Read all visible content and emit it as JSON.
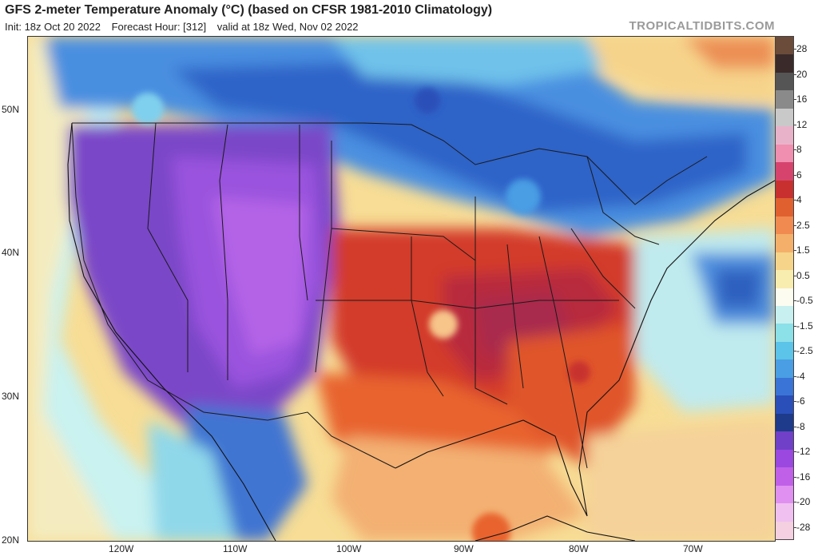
{
  "header": {
    "title": "GFS 2-meter Temperature Anomaly (°C) (based on CFSR 1981-2010 Climatology)",
    "init": "Init: 18z Oct 20 2022",
    "forecast_hour": "Forecast Hour: [312]",
    "valid": "valid at 18z Wed, Nov 02 2022",
    "brand": "TROPICALTIDBITS.COM"
  },
  "axes": {
    "lat_labels": [
      "50N",
      "40N",
      "30N",
      "20N"
    ],
    "lon_labels": [
      "120W",
      "110W",
      "100W",
      "90W",
      "80W",
      "70W"
    ]
  },
  "colorbar": {
    "labels": [
      "28",
      "20",
      "16",
      "12",
      "8",
      "6",
      "4",
      "2.5",
      "1.5",
      "0.5",
      "-0.5",
      "-1.5",
      "-2.5",
      "-4",
      "-6",
      "-8",
      "-12",
      "-16",
      "-20",
      "-28"
    ],
    "colors": [
      "#6b4b3a",
      "#3a2a2a",
      "#555555",
      "#8a8a8a",
      "#c9c9c9",
      "#e8b3c9",
      "#f08fb0",
      "#d6446e",
      "#c8302f",
      "#e06030",
      "#f08a50",
      "#f4b06a",
      "#f6d48a",
      "#f8ecaf",
      "#fcfcf0",
      "#c8f0f0",
      "#8ce0e8",
      "#5bc4e8",
      "#4a9ee4",
      "#3a74d6",
      "#2a4fb8",
      "#1e3a8a",
      "#7040c8",
      "#9a48e0",
      "#c060e8",
      "#e090f0",
      "#f0c0f0",
      "#f4d0e0"
    ]
  }
}
